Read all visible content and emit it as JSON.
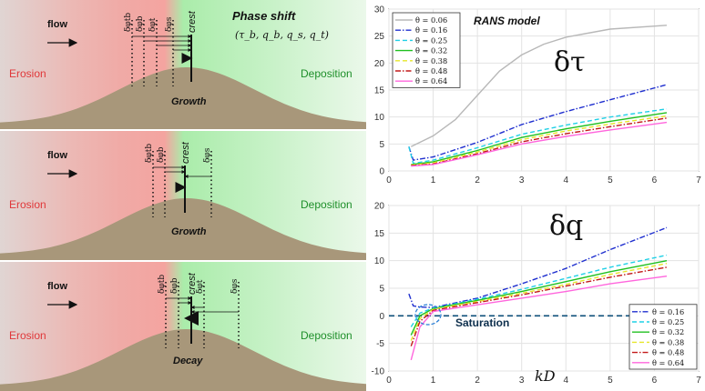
{
  "schematic": {
    "panels": [
      {
        "flow": "flow",
        "erosion": "Erosion",
        "deposition": "Deposition",
        "state": "Growth",
        "crest": "crest",
        "phase_title": "Phase shift",
        "phase_vars": "(τ_b, q_b, q_s, q_t)",
        "deltas": [
          "δφtb",
          "δφb",
          "δφt",
          "δφs"
        ]
      },
      {
        "flow": "flow",
        "erosion": "Erosion",
        "deposition": "Deposition",
        "state": "Growth",
        "crest": "crest",
        "deltas": [
          "δφtb",
          "δφb",
          "δφs"
        ]
      },
      {
        "flow": "flow",
        "erosion": "Erosion",
        "deposition": "Deposition",
        "state": "Decay",
        "crest": "crest",
        "deltas": [
          "δφtb",
          "δφb",
          "δφt",
          "δφs"
        ]
      }
    ]
  },
  "chart_data": [
    {
      "type": "line",
      "annotation": "RANS model",
      "symbol": "δτ",
      "xlim": [
        0,
        7
      ],
      "ylim": [
        0,
        30
      ],
      "xticks": [
        0,
        1,
        2,
        3,
        4,
        5,
        6,
        7
      ],
      "yticks": [
        0,
        5,
        10,
        15,
        20,
        25,
        30
      ],
      "grid": true,
      "legend_position": "top-left",
      "series": [
        {
          "name": "θ = 0.06",
          "color": "#b8b8b8",
          "dash": "solid",
          "x": [
            0.5,
            1.0,
            1.5,
            2.0,
            2.5,
            3.0,
            3.5,
            4.0,
            5.0,
            6.28
          ],
          "y": [
            4.5,
            6.5,
            9.5,
            14.0,
            18.5,
            21.5,
            23.5,
            24.8,
            26.3,
            27.0
          ]
        },
        {
          "name": "θ = 0.16",
          "color": "#1f2fcf",
          "dash": "dashdot",
          "x": [
            0.45,
            0.55,
            1.0,
            2.0,
            3.0,
            4.0,
            5.0,
            6.28
          ],
          "y": [
            4.5,
            2.0,
            2.6,
            5.3,
            8.6,
            11.0,
            13.2,
            16.0
          ]
        },
        {
          "name": "θ = 0.25",
          "color": "#1fd0e6",
          "dash": "dashed",
          "x": [
            0.45,
            0.55,
            1.0,
            2.0,
            3.0,
            4.0,
            5.0,
            6.28
          ],
          "y": [
            4.5,
            1.4,
            2.0,
            4.3,
            6.8,
            8.5,
            10.0,
            11.5
          ]
        },
        {
          "name": "θ = 0.32",
          "color": "#20c020",
          "dash": "solid",
          "x": [
            0.5,
            1.0,
            2.0,
            3.0,
            4.0,
            5.0,
            6.28
          ],
          "y": [
            1.2,
            1.7,
            3.8,
            6.2,
            7.8,
            9.2,
            10.8
          ]
        },
        {
          "name": "θ = 0.38",
          "color": "#e6e62a",
          "dash": "dashed",
          "x": [
            0.5,
            1.0,
            2.0,
            3.0,
            4.0,
            5.0,
            6.28
          ],
          "y": [
            1.1,
            1.5,
            3.5,
            5.8,
            7.4,
            8.7,
            10.2
          ]
        },
        {
          "name": "θ = 0.48",
          "color": "#c21818",
          "dash": "dashdot",
          "x": [
            0.5,
            1.0,
            2.0,
            3.0,
            4.0,
            5.0,
            6.28
          ],
          "y": [
            1.0,
            1.3,
            3.2,
            5.4,
            6.9,
            8.2,
            9.8
          ]
        },
        {
          "name": "θ = 0.64",
          "color": "#ff66dd",
          "dash": "solid",
          "x": [
            0.5,
            1.0,
            2.0,
            3.0,
            4.0,
            5.0,
            6.28
          ],
          "y": [
            0.9,
            1.2,
            3.0,
            5.0,
            6.4,
            7.6,
            9.0
          ]
        }
      ]
    },
    {
      "type": "line",
      "symbol": "δq",
      "xlabel": "kD",
      "annotation": "Saturation",
      "xlim": [
        0,
        7
      ],
      "ylim": [
        -10,
        20
      ],
      "xticks": [
        0,
        1,
        2,
        3,
        4,
        5,
        6,
        7
      ],
      "yticks": [
        -10,
        -5,
        0,
        5,
        10,
        15,
        20
      ],
      "grid": true,
      "legend_position": "bottom-right",
      "reference_line": {
        "y": 0,
        "color": "#0d4f7a",
        "dash": "dashed"
      },
      "series": [
        {
          "name": "θ = 0.16",
          "color": "#1f2fcf",
          "dash": "dashdot",
          "x": [
            0.45,
            0.55,
            0.7,
            1.0,
            2.0,
            3.0,
            4.0,
            5.0,
            6.28
          ],
          "y": [
            4.0,
            1.8,
            1.6,
            1.5,
            3.2,
            5.8,
            8.6,
            12.0,
            16.0
          ]
        },
        {
          "name": "θ = 0.25",
          "color": "#1fd0e6",
          "dash": "dashed",
          "x": [
            0.5,
            0.7,
            1.0,
            2.0,
            3.0,
            4.0,
            5.0,
            6.28
          ],
          "y": [
            -2.0,
            0.5,
            1.4,
            3.0,
            4.8,
            6.8,
            8.8,
            11.0
          ]
        },
        {
          "name": "θ = 0.32",
          "color": "#20c020",
          "dash": "solid",
          "x": [
            0.5,
            0.7,
            1.0,
            2.0,
            3.0,
            4.0,
            5.0,
            6.28
          ],
          "y": [
            -3.5,
            0.0,
            1.3,
            2.8,
            4.4,
            6.2,
            8.0,
            10.0
          ]
        },
        {
          "name": "θ = 0.38",
          "color": "#e6e62a",
          "dash": "dashed",
          "x": [
            0.5,
            0.7,
            1.0,
            2.0,
            3.0,
            4.0,
            5.0,
            6.28
          ],
          "y": [
            -4.5,
            -0.5,
            1.2,
            2.6,
            4.1,
            5.7,
            7.5,
            9.5
          ]
        },
        {
          "name": "θ = 0.48",
          "color": "#c21818",
          "dash": "dashdot",
          "x": [
            0.5,
            0.7,
            1.0,
            2.0,
            3.0,
            4.0,
            5.0,
            6.28
          ],
          "y": [
            -5.5,
            -1.0,
            1.0,
            2.4,
            3.8,
            5.4,
            7.0,
            8.8
          ]
        },
        {
          "name": "θ = 0.64",
          "color": "#ff66dd",
          "dash": "solid",
          "x": [
            0.5,
            0.7,
            1.0,
            2.0,
            3.0,
            4.0,
            5.0,
            6.28
          ],
          "y": [
            -8.0,
            -2.0,
            0.8,
            2.0,
            3.2,
            4.4,
            5.8,
            7.2
          ]
        }
      ]
    }
  ]
}
